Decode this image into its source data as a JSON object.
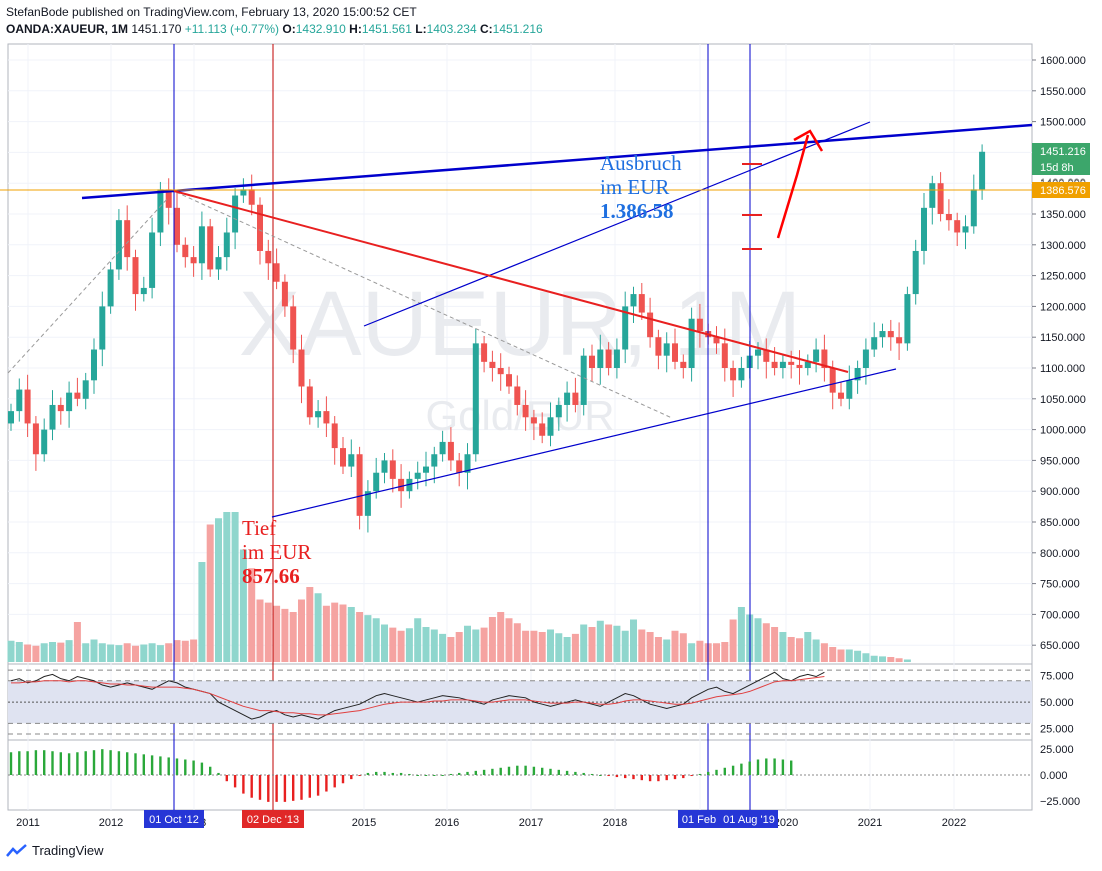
{
  "header": {
    "line1": "StefanBode published on TradingView.com, February 13, 2020 15:00:52 CET",
    "symbol": "OANDA:XAUEUR, 1M",
    "last": "1451.170",
    "change": "+11.113 (+0.77%)",
    "o_label": "O:",
    "o": "1432.910",
    "h_label": "H:",
    "h": "1451.561",
    "l_label": "L:",
    "l": "1403.234",
    "c_label": "C:",
    "c": "1451.216"
  },
  "watermark": {
    "main": "XAUEUR, 1M",
    "sub": "Gold/EUR"
  },
  "annotations": {
    "breakout": [
      "Ausbruch",
      "im EUR",
      "1.386.58"
    ],
    "low": [
      "Tief",
      "im EUR",
      "857.66"
    ]
  },
  "price_badges": {
    "last": "1451.216",
    "countdown": "15d 8h",
    "level": "1386.576",
    "hidden": "1400.000"
  },
  "date_badges": [
    "01 Oct '12",
    "02 Dec '13",
    "01 Feb",
    "01 Aug '19"
  ],
  "footer": {
    "brand": "TradingView"
  },
  "colors": {
    "up": "#26a69a",
    "down": "#ef5350",
    "blue_line": "#0000cc",
    "red_line": "#e82020",
    "level": "#f0a000"
  },
  "chart_data": [
    {
      "type": "candlestick",
      "title": "",
      "x_axis": [
        "2011",
        "2012",
        "2013",
        "2015",
        "2016",
        "2017",
        "2018",
        "2019",
        "2020",
        "2021",
        "2022"
      ],
      "y_ticks": [
        "1600.000",
        "1550.000",
        "1500.000",
        "1450.000",
        "1400.000",
        "1350.000",
        "1300.000",
        "1250.000",
        "1200.000",
        "1150.000",
        "1100.000",
        "1050.000",
        "1000.000",
        "950.000",
        "900.000",
        "850.000",
        "800.000",
        "750.000",
        "700.000",
        "650.000"
      ],
      "ylim": [
        635,
        1610
      ],
      "grid": true,
      "closes": [
        1030,
        1065,
        1010,
        960,
        1000,
        1040,
        1030,
        1060,
        1050,
        1080,
        1130,
        1200,
        1260,
        1340,
        1280,
        1220,
        1230,
        1320,
        1390,
        1360,
        1300,
        1280,
        1270,
        1330,
        1260,
        1280,
        1320,
        1380,
        1390,
        1365,
        1290,
        1270,
        1240,
        1200,
        1130,
        1070,
        1020,
        1030,
        1010,
        970,
        940,
        960,
        860,
        900,
        930,
        950,
        920,
        900,
        920,
        930,
        940,
        960,
        980,
        950,
        930,
        960,
        1140,
        1110,
        1100,
        1090,
        1070,
        1040,
        1020,
        1010,
        990,
        1020,
        1040,
        1060,
        1040,
        1120,
        1100,
        1130,
        1100,
        1130,
        1200,
        1220,
        1190,
        1150,
        1120,
        1140,
        1110,
        1100,
        1180,
        1160,
        1150,
        1140,
        1100,
        1080,
        1100,
        1120,
        1130,
        1110,
        1100,
        1110,
        1105,
        1100,
        1110,
        1130,
        1100,
        1060,
        1050,
        1080,
        1100,
        1130,
        1150,
        1160,
        1150,
        1140,
        1220,
        1290,
        1360,
        1400,
        1350,
        1340,
        1320,
        1330,
        1390,
        1451
      ]
    },
    {
      "type": "bar",
      "title": "Volume",
      "values": [
        34,
        32,
        28,
        26,
        30,
        32,
        31,
        35,
        64,
        30,
        36,
        30,
        28,
        27,
        30,
        26,
        28,
        30,
        27,
        30,
        35,
        34,
        36,
        160,
        220,
        230,
        240,
        240,
        180,
        150,
        100,
        95,
        90,
        85,
        80,
        100,
        120,
        110,
        90,
        95,
        92,
        88,
        80,
        75,
        70,
        60,
        55,
        50,
        54,
        70,
        56,
        52,
        45,
        40,
        48,
        58,
        52,
        55,
        72,
        80,
        70,
        62,
        50,
        50,
        48,
        52,
        46,
        40,
        45,
        60,
        56,
        66,
        60,
        58,
        50,
        68,
        52,
        48,
        40,
        36,
        50,
        46,
        30,
        34,
        30,
        30,
        32,
        68,
        88,
        76,
        70,
        62,
        56,
        48,
        40,
        38,
        48,
        36,
        30,
        24,
        20,
        20,
        18,
        14,
        10,
        9,
        8,
        6,
        4
      ]
    },
    {
      "type": "line",
      "title": "RSI",
      "y_ticks": [
        "75.000",
        "50.000",
        "25.000"
      ],
      "ylim": [
        20,
        82
      ],
      "reference_lines": [
        80,
        70,
        50,
        30,
        20
      ],
      "series": [
        {
          "values": [
            70,
            72,
            68,
            70,
            74,
            76,
            72,
            70,
            74,
            72,
            70,
            66,
            64,
            66,
            68,
            66,
            64,
            62,
            66,
            70,
            68,
            64,
            62,
            60,
            58,
            50,
            46,
            42,
            38,
            34,
            36,
            40,
            42,
            38,
            36,
            38,
            36,
            34,
            38,
            42,
            44,
            46,
            48,
            52,
            56,
            58,
            56,
            54,
            52,
            50,
            52,
            54,
            56,
            55,
            54,
            52,
            50,
            48,
            52,
            54,
            56,
            55,
            54,
            50,
            48,
            46,
            48,
            50,
            52,
            50,
            48,
            46,
            50,
            54,
            58,
            56,
            52,
            48,
            46,
            44,
            46,
            48,
            54,
            58,
            62,
            64,
            60,
            58,
            62,
            66,
            70,
            74,
            78,
            72,
            70,
            74,
            76,
            74,
            78
          ]
        },
        {
          "values": [
            68,
            68,
            69,
            69,
            70,
            70,
            70,
            69,
            70,
            70,
            69,
            68,
            67,
            67,
            66,
            66,
            65,
            64,
            64,
            64,
            64,
            63,
            62,
            60,
            58,
            55,
            52,
            49,
            46,
            44,
            42,
            42,
            41,
            40,
            40,
            39,
            39,
            38,
            38,
            39,
            40,
            41,
            42,
            44,
            46,
            48,
            49,
            50,
            50,
            50,
            50,
            51,
            51,
            52,
            52,
            52,
            51,
            50,
            50,
            51,
            52,
            52,
            52,
            51,
            50,
            49,
            49,
            49,
            50,
            50,
            49,
            48,
            48,
            49,
            51,
            52,
            52,
            51,
            50,
            49,
            48,
            48,
            49,
            51,
            53,
            55,
            56,
            57,
            58,
            60,
            63,
            66,
            69,
            70,
            70,
            71,
            72,
            73,
            74
          ]
        }
      ]
    },
    {
      "type": "bar",
      "title": "MACD Histogram",
      "y_ticks": [
        "25.000",
        "0.000",
        "−25.000"
      ],
      "ylim": [
        -30,
        30
      ],
      "values": [
        22,
        23,
        23,
        24,
        24,
        23,
        22,
        21,
        22,
        23,
        24,
        25,
        24,
        23,
        22,
        21,
        20,
        19,
        18,
        17,
        16,
        15,
        14,
        12,
        8,
        2,
        -6,
        -12,
        -18,
        -22,
        -24,
        -26,
        -26,
        -26,
        -25,
        -24,
        -22,
        -20,
        -16,
        -12,
        -8,
        -4,
        -1,
        2,
        3,
        3,
        2,
        2,
        1,
        0,
        0,
        0,
        0,
        1,
        2,
        3,
        4,
        5,
        6,
        7,
        8,
        9,
        9,
        8,
        7,
        6,
        5,
        4,
        3,
        2,
        1,
        0,
        -1,
        -2,
        -3,
        -4,
        -5,
        -6,
        -6,
        -5,
        -4,
        -3,
        -1,
        1,
        3,
        5,
        7,
        9,
        11,
        13,
        15,
        16,
        16,
        15,
        14
      ]
    }
  ]
}
